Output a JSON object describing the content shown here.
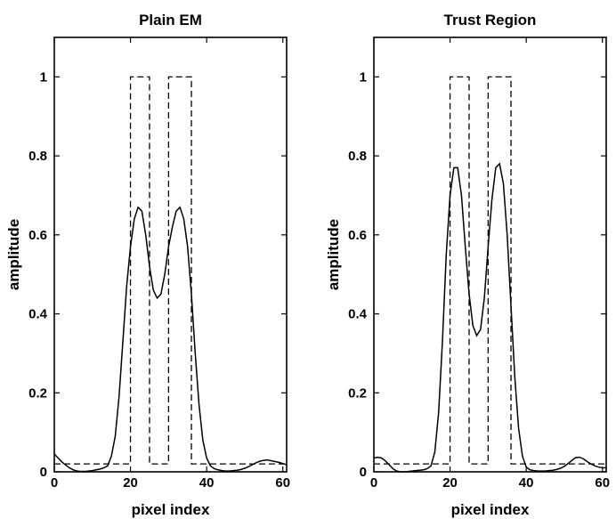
{
  "chart_data": [
    {
      "type": "line",
      "title": "Plain EM",
      "xlabel": "pixel index",
      "ylabel": "amplitude",
      "xlim": [
        0,
        61
      ],
      "ylim": [
        0,
        1.1
      ],
      "xticks": [
        0,
        20,
        40,
        60
      ],
      "yticks": [
        0,
        0.2,
        0.4,
        0.6,
        0.8,
        1
      ],
      "xtick_labels": [
        "0",
        "20",
        "40",
        "60"
      ],
      "ytick_labels": [
        "0",
        "0.2",
        "0.4",
        "0.6",
        "0.8",
        "1"
      ],
      "grid": false,
      "series": [
        {
          "style": "solid",
          "x": [
            0,
            1,
            2,
            3,
            4,
            5,
            6,
            7,
            8,
            9,
            10,
            11,
            12,
            13,
            14,
            15,
            16,
            17,
            18,
            19,
            20,
            21,
            22,
            23,
            24,
            25,
            26,
            27,
            28,
            29,
            30,
            31,
            32,
            33,
            34,
            35,
            36,
            37,
            38,
            39,
            40,
            41,
            42,
            43,
            44,
            45,
            46,
            47,
            48,
            49,
            50,
            51,
            52,
            53,
            54,
            55,
            56,
            57,
            58,
            59,
            60,
            61
          ],
          "y": [
            0.045,
            0.035,
            0.025,
            0.017,
            0.01,
            0.005,
            0.002,
            0.001,
            0.001,
            0.002,
            0.003,
            0.005,
            0.007,
            0.01,
            0.015,
            0.04,
            0.09,
            0.19,
            0.33,
            0.47,
            0.57,
            0.64,
            0.67,
            0.66,
            0.6,
            0.52,
            0.46,
            0.44,
            0.45,
            0.5,
            0.57,
            0.62,
            0.66,
            0.67,
            0.64,
            0.57,
            0.45,
            0.3,
            0.17,
            0.08,
            0.035,
            0.015,
            0.008,
            0.005,
            0.003,
            0.002,
            0.002,
            0.003,
            0.004,
            0.006,
            0.009,
            0.013,
            0.018,
            0.023,
            0.027,
            0.029,
            0.03,
            0.028,
            0.026,
            0.024,
            0.021,
            0.018
          ]
        },
        {
          "style": "dashed",
          "x": [
            0,
            20,
            20,
            25,
            25,
            30,
            30,
            36,
            36,
            61
          ],
          "y": [
            0.02,
            0.02,
            1.0,
            1.0,
            0.02,
            0.02,
            1.0,
            1.0,
            0.02,
            0.02
          ]
        }
      ]
    },
    {
      "type": "line",
      "title": "Trust Region",
      "xlabel": "pixel index",
      "ylabel": "amplitude",
      "xlim": [
        0,
        61
      ],
      "ylim": [
        0,
        1.1
      ],
      "xticks": [
        0,
        20,
        40,
        60
      ],
      "yticks": [
        0,
        0.2,
        0.4,
        0.6,
        0.8,
        1
      ],
      "xtick_labels": [
        "0",
        "20",
        "40",
        "60"
      ],
      "ytick_labels": [
        "0",
        "0.2",
        "0.4",
        "0.6",
        "0.8",
        "1"
      ],
      "grid": false,
      "series": [
        {
          "style": "solid",
          "x": [
            0,
            1,
            2,
            3,
            4,
            5,
            6,
            7,
            8,
            9,
            10,
            11,
            12,
            13,
            14,
            15,
            16,
            17,
            18,
            19,
            20,
            21,
            22,
            23,
            24,
            25,
            26,
            27,
            28,
            29,
            30,
            31,
            32,
            33,
            34,
            35,
            36,
            37,
            38,
            39,
            40,
            41,
            42,
            43,
            44,
            45,
            46,
            47,
            48,
            49,
            50,
            51,
            52,
            53,
            54,
            55,
            56,
            57,
            58,
            59,
            60,
            61
          ],
          "y": [
            0.035,
            0.037,
            0.035,
            0.028,
            0.018,
            0.008,
            0.002,
            0.0,
            0.0,
            0.001,
            0.002,
            0.003,
            0.004,
            0.005,
            0.008,
            0.015,
            0.05,
            0.15,
            0.33,
            0.55,
            0.7,
            0.77,
            0.77,
            0.7,
            0.57,
            0.45,
            0.37,
            0.345,
            0.36,
            0.44,
            0.57,
            0.69,
            0.77,
            0.78,
            0.73,
            0.6,
            0.42,
            0.24,
            0.11,
            0.04,
            0.012,
            0.005,
            0.003,
            0.002,
            0.002,
            0.002,
            0.003,
            0.004,
            0.006,
            0.009,
            0.014,
            0.021,
            0.029,
            0.036,
            0.037,
            0.033,
            0.026,
            0.02,
            0.015,
            0.012,
            0.01,
            0.01
          ]
        },
        {
          "style": "dashed",
          "x": [
            0,
            20,
            20,
            25,
            25,
            30,
            30,
            36,
            36,
            61
          ],
          "y": [
            0.02,
            0.02,
            1.0,
            1.0,
            0.02,
            0.02,
            1.0,
            1.0,
            0.02,
            0.02
          ]
        }
      ]
    }
  ]
}
